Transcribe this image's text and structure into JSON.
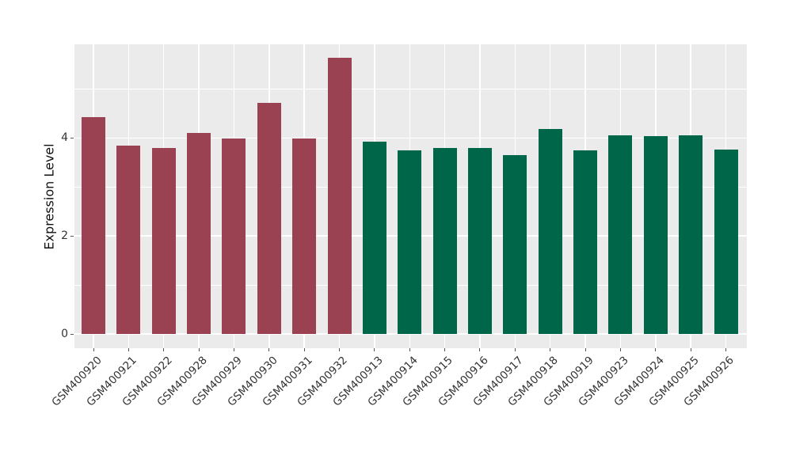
{
  "figure": {
    "background": "#FFFFFF",
    "panel_background": "#EBEBEB",
    "grid_color": "#FFFFFF",
    "tick_color": "#555555",
    "tick_label_color": "#333333",
    "axis_title_color": "#111111"
  },
  "chart_data": {
    "type": "bar",
    "title": "",
    "xlabel": "",
    "ylabel": "Expression Level",
    "categories": [
      "GSM400920",
      "GSM400921",
      "GSM400922",
      "GSM400928",
      "GSM400929",
      "GSM400930",
      "GSM400931",
      "GSM400932",
      "GSM400913",
      "GSM400914",
      "GSM400915",
      "GSM400916",
      "GSM400917",
      "GSM400918",
      "GSM400919",
      "GSM400923",
      "GSM400924",
      "GSM400925",
      "GSM400926"
    ],
    "values": [
      4.42,
      3.84,
      3.8,
      4.1,
      3.99,
      4.71,
      3.99,
      5.63,
      3.92,
      3.74,
      3.79,
      3.8,
      3.65,
      4.19,
      3.75,
      4.05,
      4.04,
      4.05,
      3.76
    ],
    "colors": [
      "#9B4252",
      "#9B4252",
      "#9B4252",
      "#9B4252",
      "#9B4252",
      "#9B4252",
      "#9B4252",
      "#9B4252",
      "#006649",
      "#006649",
      "#006649",
      "#006649",
      "#006649",
      "#006649",
      "#006649",
      "#006649",
      "#006649",
      "#006649",
      "#006649"
    ],
    "group_colors": {
      "first_8_bars": "#9B4252",
      "last_11_bars": "#006649"
    },
    "yticks": [
      0,
      2,
      4
    ],
    "ytick_labels": [
      "0",
      "2",
      "4"
    ],
    "yticks_minor": [
      1,
      3,
      5
    ],
    "ylim": [
      -0.29,
      5.91
    ],
    "grid": true,
    "legend": "none",
    "bar_width_fraction": 0.67,
    "x_tick_rotation_deg": 45
  }
}
